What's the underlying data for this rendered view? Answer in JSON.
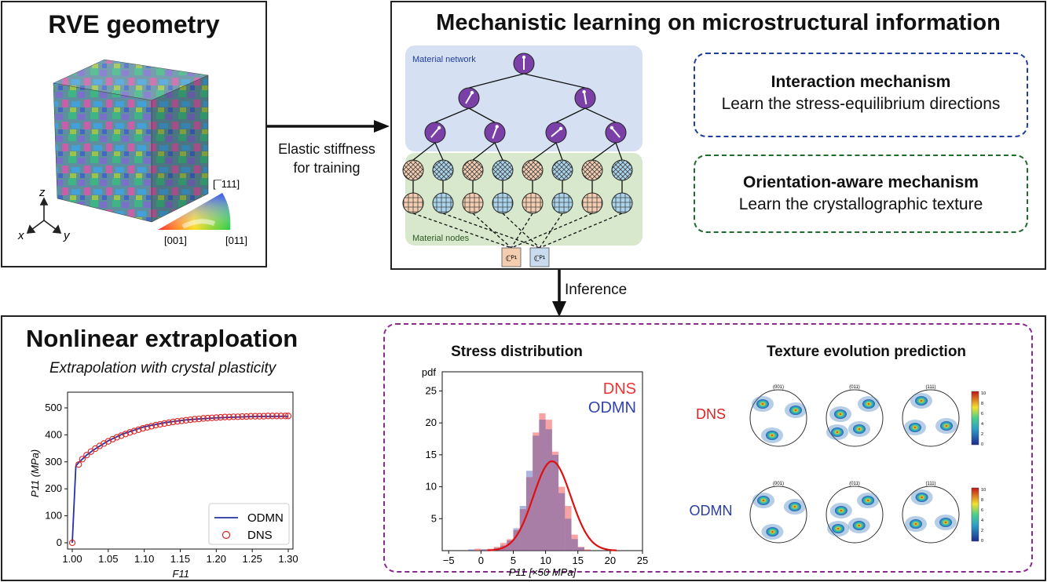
{
  "rve": {
    "title": "RVE geometry",
    "axes": {
      "z": "z",
      "x": "x",
      "y": "y"
    },
    "ipf_labels": {
      "top": "[¯111]",
      "left": "[001]",
      "right": "[011]"
    }
  },
  "arrow_label": {
    "line1": "Elastic stiffness",
    "line2": "for training"
  },
  "mechanistic": {
    "title": "Mechanistic learning on microstructural information",
    "network_label": "Material network",
    "nodes_label": "Material nodes",
    "input1": "ℂᴾ¹",
    "input2": "ℂᴾ¹",
    "interaction": {
      "title": "Interaction mechanism",
      "desc": "Learn the stress-equilibrium directions"
    },
    "orientation": {
      "title": "Orientation-aware mechanism",
      "desc": "Learn the crystallographic texture"
    },
    "colors": {
      "interaction_border": "#1f3d99",
      "orientation_border": "#1f6b2e",
      "network_bg": "#d5e1f2",
      "nodes_bg": "#d7e8cc",
      "node_purple": "#7b3fa8"
    }
  },
  "inference_label": "Inference",
  "nonlinear": {
    "title": "Nonlinear extraploation",
    "subtitle": "Extrapolation with crystal plasticity"
  },
  "stress": {
    "title": "Stress distribution"
  },
  "texture": {
    "title": "Texture evolution prediction",
    "row_labels": [
      "DNS",
      "ODMN"
    ],
    "pole_labels": [
      "(001)",
      "(011)",
      "(111)"
    ],
    "colorbar_ticks": [
      "10",
      "8",
      "6",
      "4",
      "2",
      "0"
    ]
  },
  "chart_data": [
    {
      "type": "line",
      "xlabel": "F11",
      "ylabel": "P11 (MPa)",
      "xlim": [
        1.0,
        1.3
      ],
      "ylim": [
        0,
        500
      ],
      "xticks": [
        "1.00",
        "1.05",
        "1.10",
        "1.15",
        "1.20",
        "1.25",
        "1.30"
      ],
      "yticks": [
        "0",
        "100",
        "200",
        "300",
        "400",
        "500"
      ],
      "legend_position": "bottom-right",
      "series": [
        {
          "name": "ODMN",
          "color": "#2233aa",
          "style": "line",
          "x": [
            1.0,
            1.005,
            1.01,
            1.02,
            1.03,
            1.05,
            1.07,
            1.1,
            1.13,
            1.16,
            1.2,
            1.25,
            1.3
          ],
          "y": [
            0,
            285,
            300,
            325,
            345,
            378,
            403,
            430,
            446,
            456,
            463,
            468,
            469
          ]
        },
        {
          "name": "DNS",
          "color": "#dd2222",
          "style": "open-circle",
          "x": [
            1.0,
            1.009,
            1.014,
            1.02,
            1.026,
            1.032,
            1.038,
            1.044,
            1.05,
            1.056,
            1.062,
            1.068,
            1.074,
            1.08,
            1.086,
            1.092,
            1.098,
            1.104,
            1.11,
            1.116,
            1.122,
            1.128,
            1.134,
            1.14,
            1.146,
            1.152,
            1.158,
            1.164,
            1.17,
            1.176,
            1.182,
            1.188,
            1.194,
            1.2,
            1.206,
            1.212,
            1.218,
            1.224,
            1.23,
            1.236,
            1.242,
            1.248,
            1.254,
            1.26,
            1.266,
            1.272,
            1.278,
            1.284,
            1.29,
            1.296,
            1.3
          ],
          "y": [
            0,
            290,
            310,
            325,
            338,
            349,
            359,
            368,
            376,
            384,
            391,
            397,
            403,
            409,
            414,
            419,
            424,
            428,
            432,
            436,
            439,
            442,
            445,
            448,
            450,
            452,
            454,
            456,
            458,
            459,
            461,
            462,
            463,
            464,
            465,
            466,
            466,
            467,
            467,
            468,
            468,
            469,
            469,
            469,
            469,
            470,
            470,
            470,
            470,
            470,
            470
          ]
        }
      ]
    },
    {
      "type": "bar",
      "xlabel": "P11 [×50 MPa]",
      "ylabel": "pdf",
      "xlim": [
        -6,
        25
      ],
      "ylim": [
        0,
        28
      ],
      "xticks": [
        "−5",
        "0",
        "5",
        "10",
        "15",
        "20",
        "25"
      ],
      "yticks": [
        "5",
        "10",
        "15",
        "20",
        "25"
      ],
      "legend_position": "top-right",
      "bin_edges": [
        -2,
        -1,
        0,
        1,
        2,
        3,
        4,
        5,
        6,
        7,
        8,
        9,
        10,
        11,
        12,
        13,
        14,
        15,
        16,
        17,
        18
      ],
      "series": [
        {
          "name": "DNS",
          "color": "#ee3333",
          "values": [
            0,
            0.3,
            0.2,
            0.3,
            0.6,
            1.2,
            1.8,
            3.2,
            6.5,
            11.5,
            18.5,
            21.5,
            20.5,
            15.5,
            10,
            7,
            2.5,
            0.6,
            0.2,
            0
          ]
        },
        {
          "name": "ODMN",
          "color": "#3344aa",
          "values": [
            0.2,
            0,
            0.2,
            0.2,
            0.4,
            0.8,
            1.6,
            3.5,
            7,
            12.5,
            18,
            20.5,
            19,
            15,
            9,
            5,
            1.8,
            0.5,
            0,
            0
          ]
        },
        {
          "name": "fit",
          "color": "#dd1111",
          "style": "line",
          "mean": 11,
          "peak": 14,
          "sigma": 2.9
        }
      ]
    }
  ]
}
